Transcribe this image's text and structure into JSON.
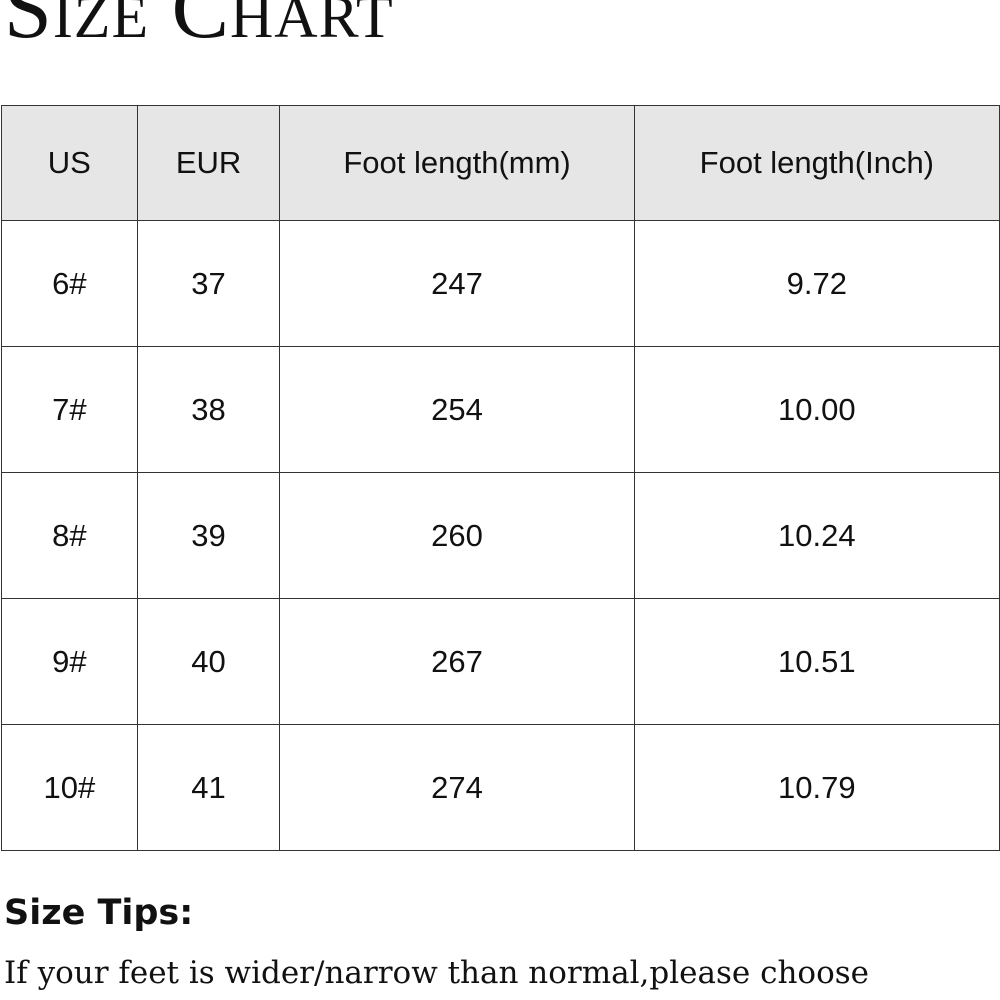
{
  "title": "Size Chart",
  "table": {
    "header": [
      "US",
      "EUR",
      "Foot length(mm)",
      "Foot length(Inch)"
    ],
    "rows": [
      [
        "6#",
        "37",
        "247",
        "9.72"
      ],
      [
        "7#",
        "38",
        "254",
        "10.00"
      ],
      [
        "8#",
        "39",
        "260",
        "10.24"
      ],
      [
        "9#",
        "40",
        "267",
        "10.51"
      ],
      [
        "10#",
        "41",
        "274",
        "10.79"
      ]
    ]
  },
  "tips": {
    "heading": "Size Tips:",
    "text": "If your feet is wider/narrow than normal,please choose"
  }
}
